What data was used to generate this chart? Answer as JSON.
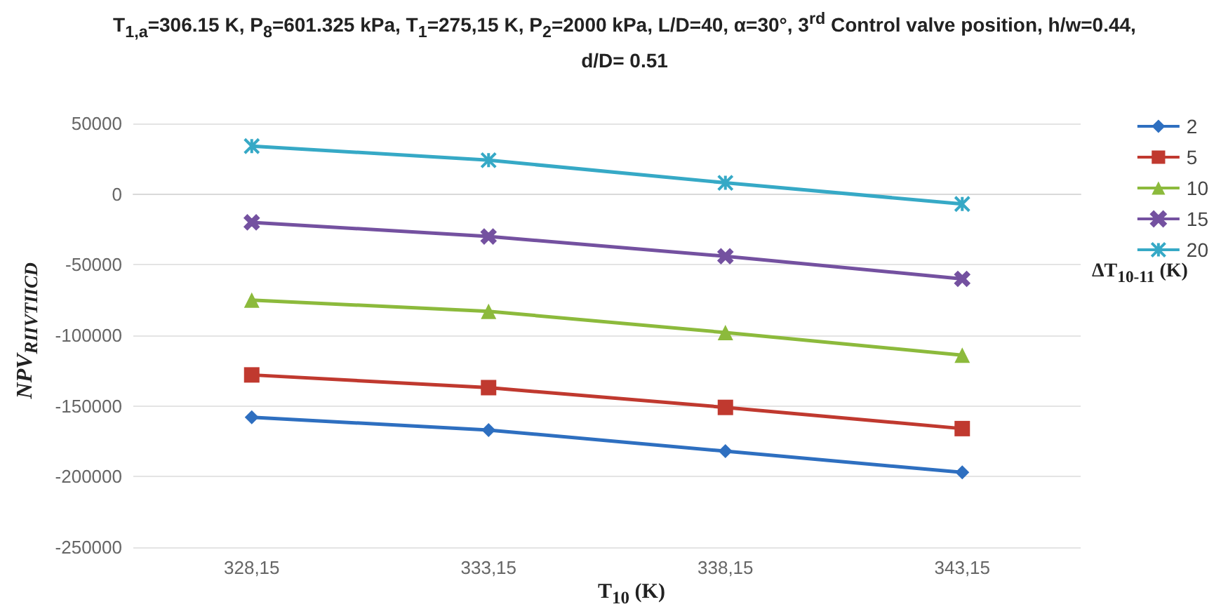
{
  "chart_data": {
    "type": "line",
    "title": "T$_{1,a}$=306.15 K, P$_{8}$=601.325 kPa, T$_{1}$=275,15 K, P$_{2}$=2000 kPa, L/D=40, α=30°, 3$^{rd}$ Control valve position, h/w=0.44, d/D= 0.51",
    "xlabel": "T$_{10}$ (K)",
    "ylabel": "NPV$_{RIIVTIICD}$",
    "legend_title": "ΔT$_{10-11}$ (K)",
    "categories": [
      "328,15",
      "333,15",
      "338,15",
      "343,15"
    ],
    "series": [
      {
        "name": "2",
        "color": "#2e6fc0",
        "marker": "diamond",
        "values": [
          -158000,
          -167000,
          -182000,
          -197000
        ]
      },
      {
        "name": "5",
        "color": "#c0392f",
        "marker": "square",
        "values": [
          -128000,
          -137000,
          -151000,
          -166000
        ]
      },
      {
        "name": "10",
        "color": "#8cba3c",
        "marker": "triangle",
        "values": [
          -75000,
          -83000,
          -98000,
          -114000
        ]
      },
      {
        "name": "15",
        "color": "#7451a0",
        "marker": "cross",
        "values": [
          -20000,
          -30000,
          -44000,
          -60000
        ]
      },
      {
        "name": "20",
        "color": "#36a9c6",
        "marker": "star",
        "values": [
          34000,
          24000,
          8000,
          -7000
        ]
      }
    ],
    "ylim": [
      -250000,
      50000
    ],
    "yticks": [
      -250000,
      -200000,
      -150000,
      -100000,
      -50000,
      0,
      50000
    ],
    "grid": "y",
    "legend": "right",
    "line_style": "solid"
  }
}
